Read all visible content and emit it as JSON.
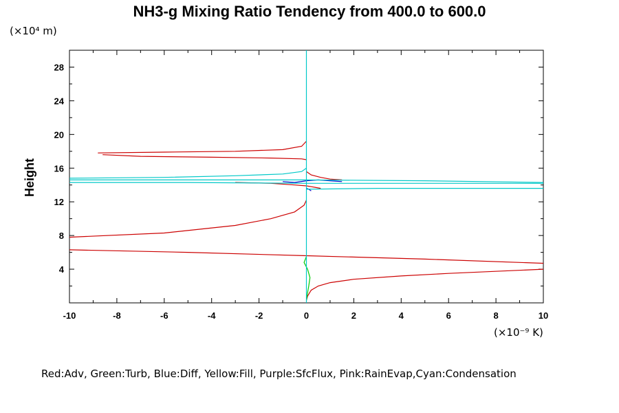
{
  "chart_data": {
    "type": "line",
    "title": "NH3-g Mixing Ratio Tendency from 400.0 to 600.0",
    "ylabel": "Height",
    "y_unit_label": "(×10⁴ m)",
    "x_unit_label": "(×10⁻⁹ K)",
    "xlim": [
      -10,
      10
    ],
    "ylim": [
      0,
      30
    ],
    "x_ticks": [
      -10,
      -8,
      -6,
      -4,
      -2,
      0,
      2,
      4,
      6,
      8,
      10
    ],
    "y_ticks": [
      4,
      8,
      12,
      16,
      20,
      24,
      28
    ],
    "legend_text": "Red:Adv, Green:Turb, Blue:Diff, Yellow:Fill, Purple:SfcFlux, Pink:RainEvap,Cyan:Condensation",
    "series": [
      {
        "color": "#cc0000",
        "segments": [
          [
            [
              10,
              4.0
            ],
            [
              6,
              3.5
            ],
            [
              4,
              3.2
            ],
            [
              2,
              2.8
            ],
            [
              1,
              2.4
            ],
            [
              0.5,
              2.0
            ],
            [
              0.2,
              1.5
            ],
            [
              0.05,
              0.8
            ],
            [
              0,
              0.3
            ]
          ],
          [
            [
              -10,
              6.3
            ],
            [
              -5,
              6.0
            ],
            [
              0,
              5.6
            ],
            [
              5,
              5.2
            ],
            [
              10,
              4.7
            ]
          ],
          [
            [
              -10,
              7.8
            ],
            [
              -6,
              8.3
            ],
            [
              -3,
              9.2
            ],
            [
              -1.5,
              10.0
            ],
            [
              -0.5,
              10.8
            ],
            [
              -0.1,
              11.6
            ],
            [
              0,
              12.2
            ]
          ],
          [
            [
              -3,
              14.3
            ],
            [
              -1.5,
              14.2
            ],
            [
              -0.5,
              14.0
            ],
            [
              0,
              13.9
            ],
            [
              0.2,
              13.8
            ],
            [
              0.4,
              13.7
            ],
            [
              0.6,
              13.6
            ]
          ],
          [
            [
              -8.6,
              17.6
            ],
            [
              -7,
              17.4
            ],
            [
              -4,
              17.3
            ],
            [
              -1.5,
              17.2
            ],
            [
              -0.2,
              17.1
            ],
            [
              0,
              17.0
            ]
          ],
          [
            [
              -8.8,
              17.8
            ],
            [
              -6,
              17.9
            ],
            [
              -3,
              18.0
            ],
            [
              -1,
              18.2
            ],
            [
              -0.2,
              18.6
            ],
            [
              0,
              19.2
            ]
          ],
          [
            [
              0,
              15.6
            ],
            [
              0.2,
              15.2
            ],
            [
              0.6,
              14.9
            ],
            [
              1,
              14.7
            ],
            [
              1.5,
              14.6
            ]
          ]
        ]
      },
      {
        "color": "#00cc00",
        "segments": [
          [
            [
              0,
              0.3
            ],
            [
              0.05,
              1.2
            ],
            [
              0.1,
              2.0
            ],
            [
              0.15,
              3.0
            ],
            [
              0.05,
              4.0
            ],
            [
              -0.1,
              4.8
            ],
            [
              0,
              5.5
            ]
          ]
        ]
      },
      {
        "color": "#0000cc",
        "segments": [
          [
            [
              -1.0,
              14.4
            ],
            [
              -0.5,
              14.3
            ],
            [
              0,
              14.5
            ],
            [
              0.5,
              14.6
            ],
            [
              1,
              14.5
            ],
            [
              1.5,
              14.4
            ]
          ],
          [
            [
              0,
              13.6
            ],
            [
              0.1,
              13.5
            ],
            [
              0.2,
              13.3
            ]
          ]
        ]
      },
      {
        "color": "#00c8c8",
        "segments": [
          [
            [
              0,
              0
            ],
            [
              0,
              12
            ],
            [
              0,
              13.4
            ],
            [
              0,
              15.6
            ],
            [
              0,
              20
            ],
            [
              0,
              30
            ]
          ],
          [
            [
              -10,
              14.8
            ],
            [
              -6,
              14.9
            ],
            [
              -3,
              15.1
            ],
            [
              -1,
              15.3
            ],
            [
              -0.2,
              15.6
            ],
            [
              0,
              16.0
            ]
          ],
          [
            [
              -10,
              14.6
            ],
            [
              -5,
              14.6
            ],
            [
              0,
              14.6
            ],
            [
              5,
              14.5
            ],
            [
              10,
              14.3
            ]
          ],
          [
            [
              -10,
              14.3
            ],
            [
              -5,
              14.3
            ],
            [
              0,
              14.2
            ],
            [
              5,
              14.2
            ],
            [
              10,
              14.2
            ]
          ],
          [
            [
              0,
              13.5
            ],
            [
              3,
              13.6
            ],
            [
              6,
              13.6
            ],
            [
              10,
              13.6
            ]
          ]
        ]
      }
    ]
  }
}
